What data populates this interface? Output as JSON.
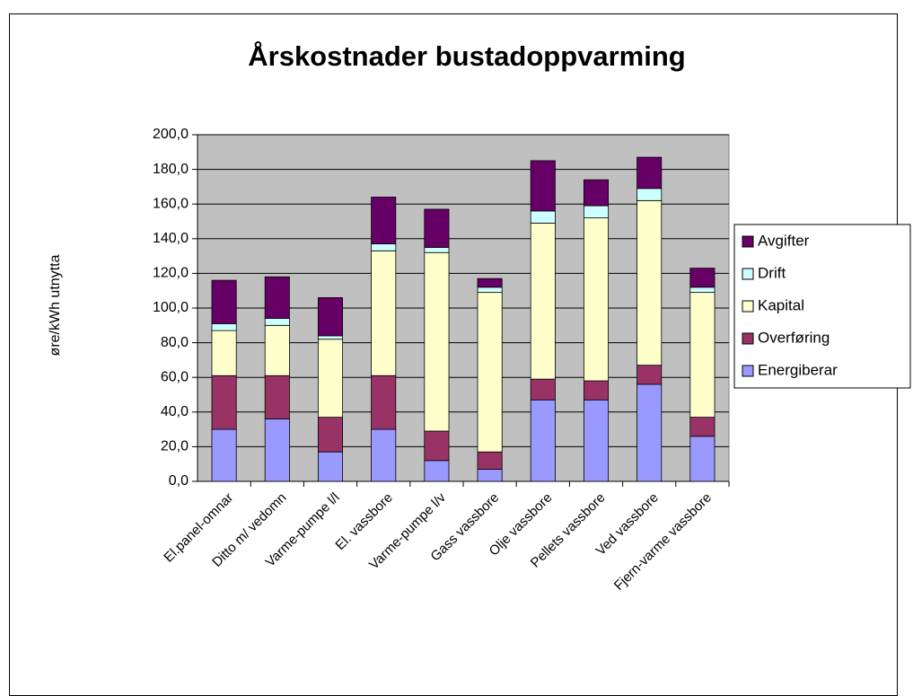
{
  "chart_data": {
    "type": "stacked-bar",
    "title": "Årskostnader bustadoppvarming",
    "y_label": "øre/kWh utnytta",
    "categories": [
      "El.panel-omnar",
      "Ditto m/ vedomn",
      "Varme-pumpe l/l",
      "El. vassbore",
      "Varme-pumpe l/v",
      "Gass vassbore",
      "Olje vassbore",
      "Pellets vassbore",
      "Ved vassbore",
      "Fjern-varme vassbore"
    ],
    "series": [
      {
        "name": "Energiberar",
        "color": "#9999ff",
        "values": [
          30,
          36,
          17,
          30,
          12,
          7,
          47,
          47,
          56,
          26
        ]
      },
      {
        "name": "Overføring",
        "color": "#993366",
        "values": [
          31,
          25,
          20,
          31,
          17,
          10,
          12,
          11,
          11,
          11
        ]
      },
      {
        "name": "Kapital",
        "color": "#ffffcc",
        "values": [
          26,
          29,
          45,
          72,
          103,
          92,
          90,
          94,
          95,
          72
        ]
      },
      {
        "name": "Drift",
        "color": "#ccffff",
        "values": [
          4,
          4,
          2,
          4,
          3,
          3,
          7,
          7,
          7,
          3
        ]
      },
      {
        "name": "Avgifter",
        "color": "#660066",
        "values": [
          25,
          24,
          22,
          27,
          22,
          5,
          29,
          15,
          18,
          11
        ]
      }
    ],
    "ylim": [
      0,
      200
    ],
    "yticks": [
      {
        "value": 0,
        "label": "0,0"
      },
      {
        "value": 20,
        "label": "20,0"
      },
      {
        "value": 40,
        "label": "40,0"
      },
      {
        "value": 60,
        "label": "60,0"
      },
      {
        "value": 80,
        "label": "80,0"
      },
      {
        "value": 100,
        "label": "100,0"
      },
      {
        "value": 120,
        "label": "120,0"
      },
      {
        "value": 140,
        "label": "140,0"
      },
      {
        "value": 160,
        "label": "160,0"
      },
      {
        "value": 180,
        "label": "180,0"
      },
      {
        "value": 200,
        "label": "200,0"
      }
    ],
    "grid": true,
    "plot_background": "#c0c0c0",
    "legend": "right"
  }
}
